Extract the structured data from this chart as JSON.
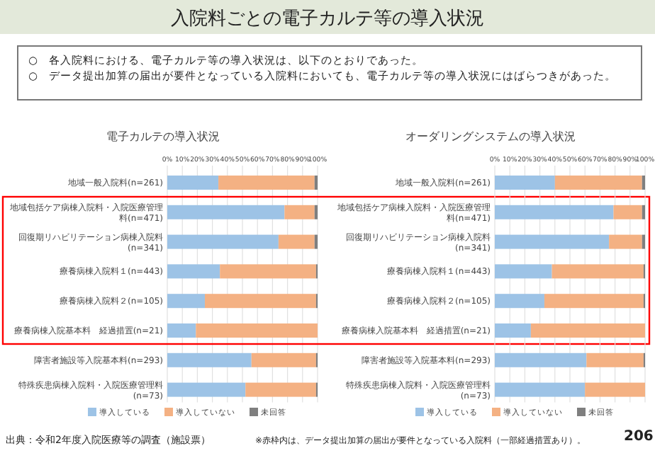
{
  "chart_data": [
    {
      "type": "bar",
      "orientation": "horizontal",
      "stacked": true,
      "title": "電子カルテの導入状況",
      "categories": [
        "地域一般入院料(n=261)",
        "地域包括ケア病棟入院料・入院医療管理料(n=471)",
        "回復期リハビリテーション病棟入院料(n=341)",
        "療養病棟入院料１(n=443)",
        "療養病棟入院料２(n=105)",
        "療養病棟入院基本料　経過措置(n=21)",
        "障害者施設等入院基本料(n=293)",
        "特殊疾患病棟入院料・入院医療管理料(n=73)"
      ],
      "series": [
        {
          "name": "導入している",
          "color": "#9dc3e6",
          "values": [
            34,
            78,
            74,
            35,
            25,
            19,
            56,
            52
          ]
        },
        {
          "name": "導入していない",
          "color": "#f4b183",
          "values": [
            64,
            20,
            24,
            64,
            74,
            81,
            43,
            47
          ]
        },
        {
          "name": "未回答",
          "color": "#7f7f7f",
          "values": [
            2,
            2,
            2,
            1,
            1,
            0,
            1,
            1
          ]
        }
      ],
      "xlim": [
        0,
        100
      ],
      "xticks": [
        {
          "value": 0,
          "label": "0%"
        },
        {
          "value": 10,
          "label": "10%"
        },
        {
          "value": 20,
          "label": "20%"
        },
        {
          "value": 30,
          "label": "30%"
        },
        {
          "value": 40,
          "label": "40%"
        },
        {
          "value": 50,
          "label": "50%"
        },
        {
          "value": 60,
          "label": "60%"
        },
        {
          "value": 70,
          "label": "70%"
        },
        {
          "value": 80,
          "label": "80%"
        },
        {
          "value": 90,
          "label": "90%"
        },
        {
          "value": 100,
          "label": "100%"
        }
      ],
      "grid": "x",
      "legend": "bottom",
      "annotations": [
        "入院料ごとの電子カルテ等の導入状況",
        "○　各入院料における、電子カルテ等の導入状況は、以下のとおりであった。",
        "○　データ提出加算の届出が要件となっている入院料においても、電子カルテ等の導入状況にはばらつきがあった。",
        "出典：令和2年度入院医療等の調査（施設票）",
        "※赤枠内は、データ提出加算の届出が要件となっている入院料（一部経過措置あり）。",
        "206"
      ]
    },
    {
      "type": "bar",
      "orientation": "horizontal",
      "stacked": true,
      "title": "オーダリングシステムの導入状況",
      "categories": [
        "地域一般入院料(n=261)",
        "地域包括ケア病棟入院料・入院医療管理料(n=471)",
        "回復期リハビリテーション病棟入院料(n=341)",
        "療養病棟入院料１(n=443)",
        "療養病棟入院料２(n=105)",
        "療養病棟入院基本料　経過措置(n=21)",
        "障害者施設等入院基本料(n=293)",
        "特殊疾患病棟入院料・入院医療管理料(n=73)"
      ],
      "series": [
        {
          "name": "導入している",
          "color": "#9dc3e6",
          "values": [
            40,
            79,
            76,
            38,
            33,
            24,
            61,
            60
          ]
        },
        {
          "name": "導入していない",
          "color": "#f4b183",
          "values": [
            58,
            19,
            22,
            61,
            66,
            76,
            38,
            40
          ]
        },
        {
          "name": "未回答",
          "color": "#7f7f7f",
          "values": [
            2,
            2,
            2,
            1,
            1,
            0,
            1,
            0
          ]
        }
      ],
      "xlim": [
        0,
        100
      ],
      "xticks": [
        {
          "value": 0,
          "label": "0%"
        },
        {
          "value": 10,
          "label": "10%"
        },
        {
          "value": 20,
          "label": "20%"
        },
        {
          "value": 30,
          "label": "30%"
        },
        {
          "value": 40,
          "label": "40%"
        },
        {
          "value": 50,
          "label": "50%"
        },
        {
          "value": 60,
          "label": "60%"
        },
        {
          "value": 70,
          "label": "70%"
        },
        {
          "value": 80,
          "label": "80%"
        },
        {
          "value": 90,
          "label": "90%"
        },
        {
          "value": 100,
          "label": "100%"
        }
      ],
      "grid": "x",
      "legend": "bottom"
    }
  ]
}
